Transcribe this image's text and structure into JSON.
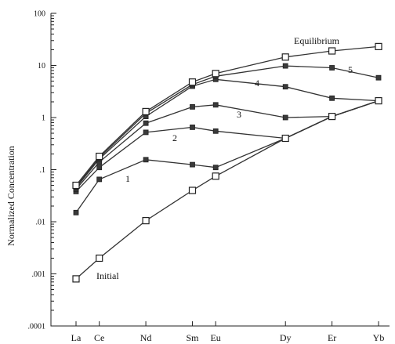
{
  "chart_data": {
    "type": "line",
    "ylabel": "Normalized Concentration",
    "xlabel": "",
    "yscale": "log",
    "ylim": [
      0.0001,
      100
    ],
    "yticks": [
      {
        "value": 100,
        "label": "100"
      },
      {
        "value": 10,
        "label": "10"
      },
      {
        "value": 1,
        "label": "1"
      },
      {
        "value": 0.1,
        "label": ".1"
      },
      {
        "value": 0.01,
        "label": ".01"
      },
      {
        "value": 0.001,
        "label": ".001"
      },
      {
        "value": 0.0001,
        "label": ".0001"
      }
    ],
    "categories": [
      "La",
      "Ce",
      "Nd",
      "Sm",
      "Eu",
      "Dy",
      "Er",
      "Yb"
    ],
    "category_positions": [
      0,
      1,
      3,
      5,
      6,
      9,
      11,
      13
    ],
    "series": [
      {
        "name": "Initial",
        "marker": "open-square",
        "values": [
          0.0008,
          0.002,
          0.0105,
          0.04,
          0.075,
          0.4,
          1.05,
          2.1
        ]
      },
      {
        "name": "1",
        "marker": "filled-square",
        "values": [
          0.015,
          0.065,
          0.155,
          0.125,
          0.11,
          0.4,
          1.05,
          2.1
        ]
      },
      {
        "name": "2",
        "marker": "filled-square",
        "values": [
          0.038,
          0.11,
          0.52,
          0.65,
          0.55,
          0.4,
          1.05,
          2.1
        ]
      },
      {
        "name": "3",
        "marker": "filled-square",
        "values": [
          0.042,
          0.14,
          0.78,
          1.6,
          1.75,
          1.0,
          1.05,
          2.1
        ]
      },
      {
        "name": "4",
        "marker": "filled-square",
        "values": [
          0.045,
          0.16,
          1.05,
          4.0,
          5.4,
          3.9,
          2.35,
          2.1
        ]
      },
      {
        "name": "5",
        "marker": "filled-square",
        "values": [
          0.047,
          0.17,
          1.2,
          4.3,
          6.2,
          9.8,
          9.0,
          5.8
        ]
      },
      {
        "name": "Equilibrium",
        "marker": "open-square",
        "values": [
          0.05,
          0.18,
          1.3,
          4.8,
          7.0,
          14.5,
          19.0,
          23.0
        ]
      }
    ],
    "annotations": [
      {
        "text": "Equilibrium"
      },
      {
        "text": "5"
      },
      {
        "text": "4"
      },
      {
        "text": "3"
      },
      {
        "text": "2"
      },
      {
        "text": "1"
      },
      {
        "text": "Initial"
      }
    ],
    "grid": false,
    "legend": "none"
  }
}
